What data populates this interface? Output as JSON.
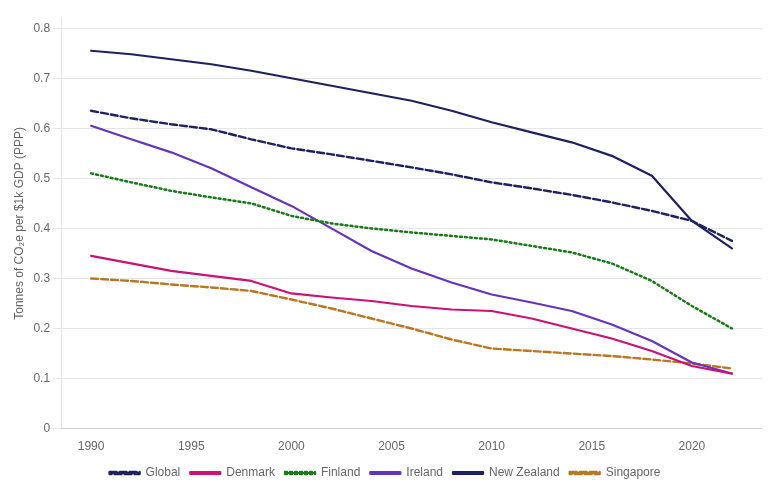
{
  "chart_data": {
    "type": "line",
    "y_label": "Tonnes of CO₂e per $1k GDP (PPP)",
    "x": [
      1990,
      1992,
      1994,
      1996,
      1998,
      2000,
      2002,
      2004,
      2006,
      2008,
      2010,
      2012,
      2014,
      2016,
      2018,
      2020,
      2022
    ],
    "series": [
      {
        "name": "Global",
        "color": "#1e2060",
        "line_style": "dashed",
        "values": [
          0.635,
          0.62,
          0.608,
          0.598,
          0.578,
          0.56,
          0.548,
          0.535,
          0.522,
          0.508,
          0.492,
          0.48,
          0.467,
          0.452,
          0.435,
          0.415,
          0.375
        ]
      },
      {
        "name": "Denmark",
        "color": "#cc1177",
        "line_style": "solid",
        "values": [
          0.345,
          0.33,
          0.315,
          0.305,
          0.295,
          0.27,
          0.262,
          0.255,
          0.245,
          0.238,
          0.235,
          0.22,
          0.2,
          0.18,
          0.155,
          0.125,
          0.11
        ]
      },
      {
        "name": "Finland",
        "color": "#1a7a1a",
        "line_style": "dotted",
        "values": [
          0.51,
          0.492,
          0.475,
          0.462,
          0.45,
          0.425,
          0.41,
          0.4,
          0.392,
          0.385,
          0.378,
          0.365,
          0.352,
          0.33,
          0.295,
          0.245,
          0.2
        ]
      },
      {
        "name": "Ireland",
        "color": "#6633bb",
        "line_style": "solid",
        "values": [
          0.605,
          0.578,
          0.552,
          0.52,
          0.482,
          0.445,
          0.4,
          0.355,
          0.32,
          0.292,
          0.268,
          0.252,
          0.235,
          0.208,
          0.175,
          0.132,
          0.11
        ]
      },
      {
        "name": "New Zealand",
        "color": "#1e2060",
        "line_style": "solid",
        "values": [
          0.755,
          0.748,
          0.738,
          0.728,
          0.715,
          0.7,
          0.685,
          0.67,
          0.655,
          0.635,
          0.612,
          0.592,
          0.572,
          0.545,
          0.505,
          0.415,
          0.36
        ]
      },
      {
        "name": "Singapore",
        "color": "#b87820",
        "line_style": "dashed",
        "values": [
          0.3,
          0.295,
          0.288,
          0.282,
          0.275,
          0.258,
          0.24,
          0.22,
          0.2,
          0.178,
          0.16,
          0.155,
          0.15,
          0.145,
          0.138,
          0.13,
          0.12
        ]
      }
    ],
    "xlim": [
      1988.5,
      2023.5
    ],
    "xticks": [
      1990,
      1995,
      2000,
      2005,
      2010,
      2015,
      2020
    ],
    "ylim": [
      0,
      0.82
    ],
    "yticks": [
      0,
      0.1,
      0.2,
      0.3,
      0.4,
      0.5,
      0.6,
      0.7,
      0.8
    ],
    "grid": true,
    "legend": "bottom"
  }
}
